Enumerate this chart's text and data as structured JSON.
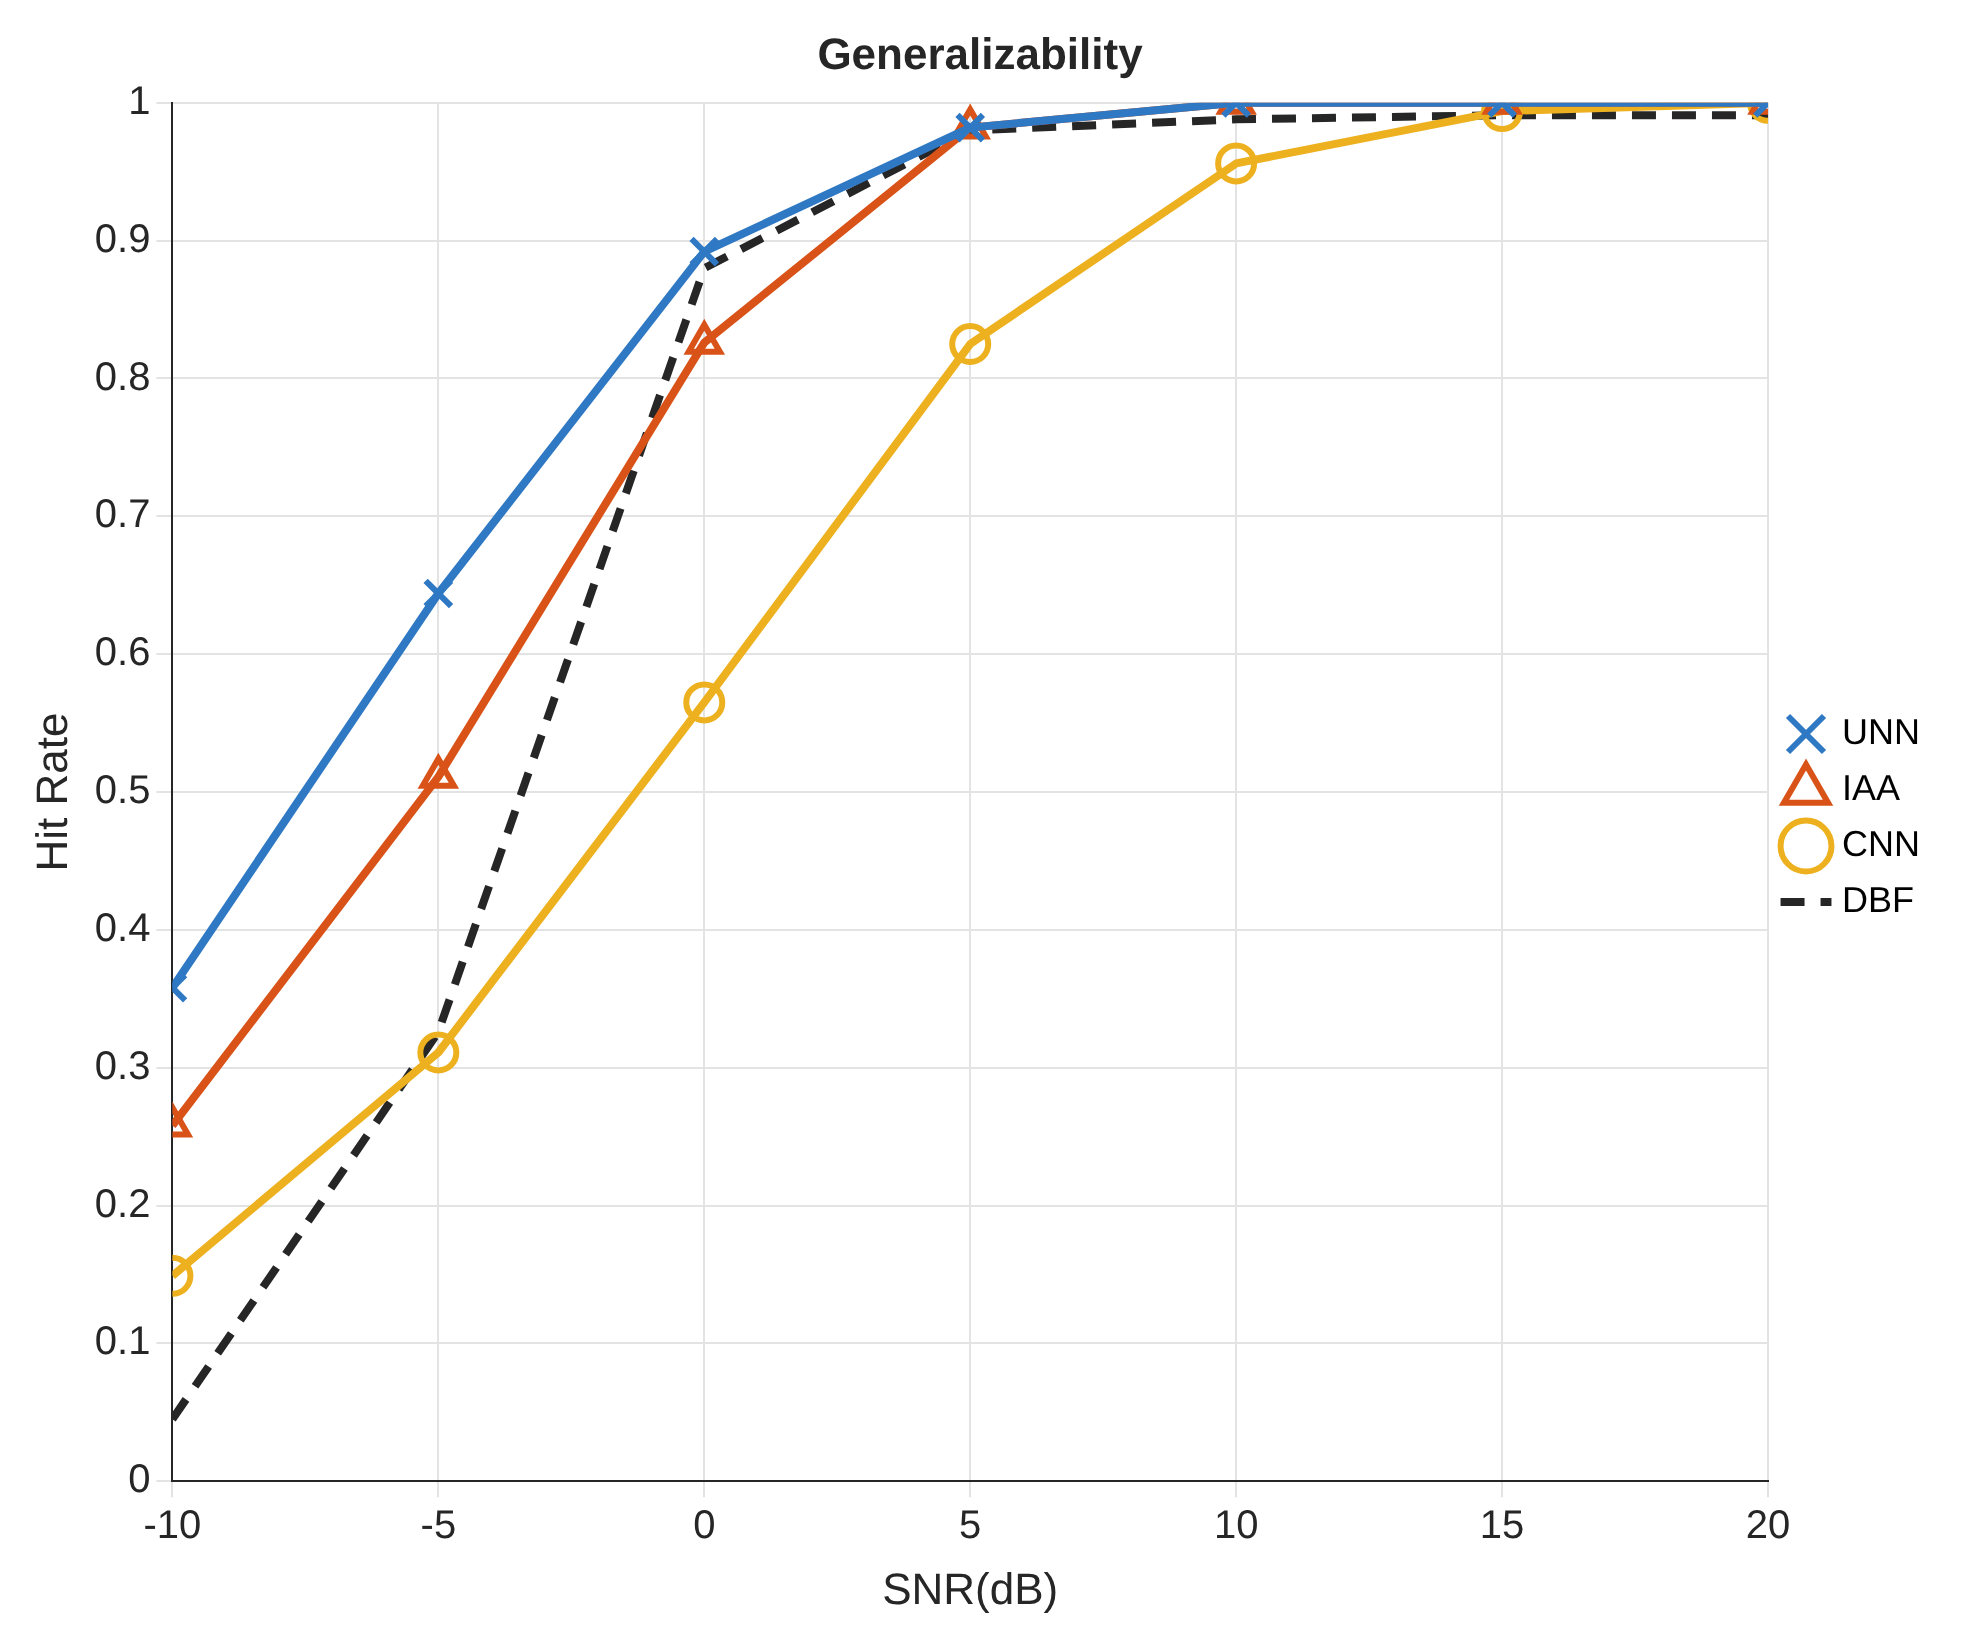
{
  "chart_data": {
    "type": "line",
    "title": "Generalizability",
    "xlabel": "SNR(dB)",
    "ylabel": "Hit Rate",
    "x": [
      -10,
      -5,
      0,
      5,
      10,
      15,
      20
    ],
    "xlim": [
      -10,
      20
    ],
    "xticks": [
      -10,
      -5,
      0,
      5,
      10,
      15,
      20
    ],
    "ylim": [
      0,
      1
    ],
    "yticks": [
      0,
      0.1,
      0.2,
      0.3,
      0.4,
      0.5,
      0.6,
      0.7,
      0.8,
      0.9,
      1
    ],
    "grid": true,
    "legend": "right",
    "series": [
      {
        "name": "UNN",
        "color": "#2f78c4",
        "marker": "cross",
        "line_style": "solid",
        "values": [
          0.358,
          0.644,
          0.892,
          0.982,
          1.0,
          1.0,
          1.0
        ]
      },
      {
        "name": "IAA",
        "color": "#d95319",
        "marker": "triangle",
        "line_style": "solid",
        "values": [
          0.258,
          0.511,
          0.826,
          0.982,
          1.0,
          1.0,
          1.0
        ]
      },
      {
        "name": "CNN",
        "color": "#edb120",
        "marker": "circle",
        "line_style": "solid",
        "values": [
          0.149,
          0.311,
          0.565,
          0.825,
          0.956,
          0.994,
          1.0
        ]
      },
      {
        "name": "DBF",
        "color": "#262626",
        "marker": "none",
        "line_style": "dashed",
        "values": [
          0.045,
          0.326,
          0.88,
          0.98,
          0.988,
          0.991,
          0.991
        ]
      }
    ]
  }
}
